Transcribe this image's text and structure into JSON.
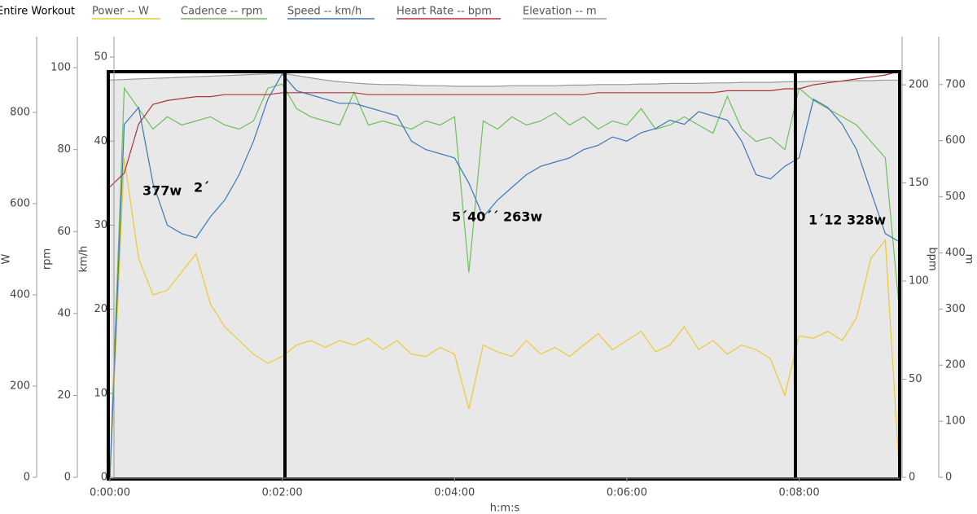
{
  "chart_data": {
    "type": "line",
    "title": "Entire Workout",
    "xlabel": "h:m:s",
    "x": [
      0,
      10,
      20,
      30,
      40,
      50,
      60,
      70,
      80,
      90,
      100,
      110,
      120,
      130,
      140,
      150,
      160,
      170,
      180,
      190,
      200,
      210,
      220,
      230,
      240,
      250,
      260,
      270,
      280,
      290,
      300,
      310,
      320,
      330,
      340,
      350,
      360,
      370,
      380,
      390,
      400,
      410,
      420,
      430,
      440,
      450,
      460,
      470,
      480,
      490,
      500,
      510,
      520,
      530,
      540,
      550
    ],
    "xlim": [
      0,
      550
    ],
    "xticks": [
      {
        "value": 0,
        "label": "0:00:00"
      },
      {
        "value": 120,
        "label": "0:02:00"
      },
      {
        "value": 240,
        "label": "0:04:00"
      },
      {
        "value": 360,
        "label": "0:06:00"
      },
      {
        "value": 480,
        "label": "0:08:00"
      }
    ],
    "ylabel": "W",
    "ylim": [
      0,
      925
    ],
    "yticks": [
      0,
      200,
      400,
      600,
      800
    ],
    "y2label": "rpm",
    "y2lim": [
      0,
      103
    ],
    "y2ticks": [
      0,
      20,
      40,
      60,
      80,
      100
    ],
    "y3label": "km/h",
    "y3lim": [
      0,
      50.2
    ],
    "y3ticks": [
      0,
      10,
      20,
      30,
      40,
      50
    ],
    "y4label": "bpm",
    "y4lim": [
      0,
      215
    ],
    "y4ticks": [
      0,
      50,
      100,
      150,
      200
    ],
    "y5label": "m",
    "y5lim": [
      0,
      752
    ],
    "y5ticks": [
      0,
      100,
      200,
      300,
      400,
      500,
      600,
      700
    ],
    "series": [
      {
        "name": "Power -- W",
        "color": "#f0c830",
        "axis": "y",
        "values": [
          0,
          700,
          480,
          400,
          410,
          450,
          490,
          380,
          330,
          300,
          270,
          250,
          265,
          290,
          300,
          285,
          300,
          290,
          305,
          280,
          300,
          270,
          265,
          285,
          270,
          150,
          290,
          275,
          265,
          300,
          270,
          285,
          265,
          290,
          315,
          280,
          300,
          320,
          275,
          290,
          330,
          280,
          300,
          270,
          290,
          280,
          260,
          180,
          310,
          305,
          320,
          300,
          350,
          480,
          520,
          0
        ]
      },
      {
        "name": "Cadence -- rpm",
        "color": "#6cbf5a",
        "axis": "y2",
        "values": [
          0,
          95,
          90,
          85,
          88,
          86,
          87,
          88,
          86,
          85,
          87,
          95,
          96,
          90,
          88,
          87,
          86,
          94,
          86,
          87,
          86,
          85,
          87,
          86,
          88,
          50,
          87,
          85,
          88,
          86,
          87,
          89,
          86,
          88,
          85,
          87,
          86,
          90,
          85,
          86,
          88,
          86,
          84,
          93,
          85,
          82,
          83,
          80,
          95,
          92,
          90,
          88,
          86,
          82,
          78,
          40
        ]
      },
      {
        "name": "Speed -- km/h",
        "color": "#3a78b8",
        "axis": "y3",
        "values": [
          0,
          42,
          44,
          35,
          30,
          29,
          28.5,
          31,
          33,
          36,
          40,
          45,
          48,
          46,
          45.5,
          45,
          44.5,
          44.5,
          44,
          43.5,
          43,
          40,
          39,
          38.5,
          38,
          35,
          31,
          33,
          34.5,
          36,
          37,
          37.5,
          38,
          39,
          39.5,
          40.5,
          40,
          41,
          41.5,
          42.5,
          42,
          43.5,
          43,
          42.5,
          40,
          36,
          35.5,
          37,
          38,
          45,
          44,
          42,
          39,
          34,
          29,
          28
        ]
      },
      {
        "name": "Heart Rate -- bpm",
        "color": "#b0313a",
        "axis": "y4",
        "values": [
          148,
          155,
          180,
          190,
          192,
          193,
          194,
          194,
          195,
          195,
          195,
          195,
          196,
          196,
          196,
          196,
          196,
          196,
          195,
          195,
          195,
          195,
          195,
          195,
          195,
          195,
          195,
          195,
          195,
          195,
          195,
          195,
          195,
          195,
          196,
          196,
          196,
          196,
          196,
          196,
          196,
          196,
          196,
          197,
          197,
          197,
          197,
          198,
          198,
          200,
          201,
          202,
          203,
          204,
          205,
          207
        ]
      },
      {
        "name": "Elevation -- m",
        "color": "#999999",
        "fill": "#e8e8e8",
        "axis": "y5",
        "values": [
          708,
          709,
          710,
          711,
          712,
          713,
          714,
          715,
          716,
          717,
          718,
          719,
          720,
          716,
          712,
          708,
          705,
          703,
          701,
          700,
          700,
          699,
          698,
          698,
          697,
          697,
          697,
          697,
          698,
          698,
          698,
          698,
          699,
          699,
          700,
          700,
          700,
          701,
          701,
          702,
          702,
          702,
          703,
          703,
          704,
          704,
          704,
          705,
          705,
          706,
          706,
          706,
          707,
          707,
          708,
          708
        ]
      }
    ],
    "annotations": [
      "377w",
      "2´",
      "5´40´´ 263w",
      "1´12 328w"
    ]
  }
}
